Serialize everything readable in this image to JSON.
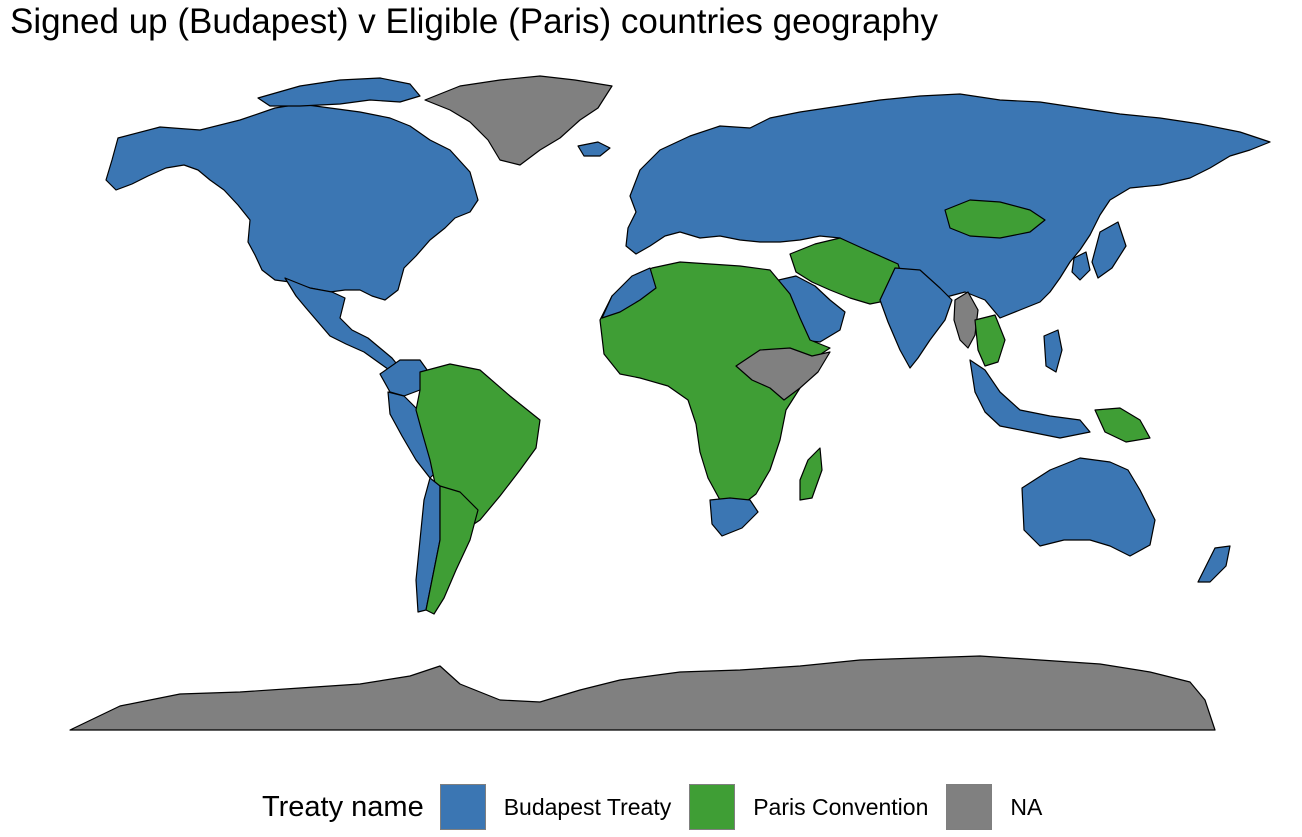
{
  "title": "Signed up (Budapest) v Eligible (Paris) countries geography",
  "colors": {
    "budapest": "#3b76b3",
    "paris": "#3f9e35",
    "na": "#808080",
    "border": "#000000",
    "background": "#ffffff"
  },
  "legend": {
    "title": "Treaty name",
    "items": [
      {
        "label": "Budapest Treaty",
        "color": "#3b76b3"
      },
      {
        "label": "Paris Convention",
        "color": "#3f9e35"
      },
      {
        "label": "NA",
        "color": "#808080"
      }
    ]
  },
  "regions": [
    {
      "name": "North America",
      "category": "Budapest Treaty"
    },
    {
      "name": "Central America",
      "category": "Budapest Treaty"
    },
    {
      "name": "Greenland",
      "category": "NA"
    },
    {
      "name": "Europe",
      "category": "Budapest Treaty"
    },
    {
      "name": "Russia",
      "category": "Budapest Treaty"
    },
    {
      "name": "China",
      "category": "Budapest Treaty"
    },
    {
      "name": "Mongolia",
      "category": "Paris Convention"
    },
    {
      "name": "Central Asia",
      "category": "Paris Convention"
    },
    {
      "name": "Saudi Arabia",
      "category": "Budapest Treaty"
    },
    {
      "name": "India",
      "category": "Budapest Treaty"
    },
    {
      "name": "Myanmar",
      "category": "NA"
    },
    {
      "name": "Southeast Asia",
      "category": "Paris Convention"
    },
    {
      "name": "Indonesia",
      "category": "Budapest Treaty"
    },
    {
      "name": "Papua New Guinea",
      "category": "Paris Convention"
    },
    {
      "name": "Australia",
      "category": "Budapest Treaty"
    },
    {
      "name": "New Zealand",
      "category": "Budapest Treaty"
    },
    {
      "name": "Africa",
      "category": "Paris Convention"
    },
    {
      "name": "Horn of Africa",
      "category": "NA"
    },
    {
      "name": "Morocco",
      "category": "Budapest Treaty"
    },
    {
      "name": "South Africa",
      "category": "Budapest Treaty"
    },
    {
      "name": "Madagascar",
      "category": "Paris Convention"
    },
    {
      "name": "Colombia",
      "category": "Budapest Treaty"
    },
    {
      "name": "Peru",
      "category": "Budapest Treaty"
    },
    {
      "name": "Chile",
      "category": "Budapest Treaty"
    },
    {
      "name": "Brazil",
      "category": "Paris Convention"
    },
    {
      "name": "Argentina",
      "category": "Paris Convention"
    },
    {
      "name": "Japan",
      "category": "Budapest Treaty"
    },
    {
      "name": "Korea",
      "category": "Budapest Treaty"
    },
    {
      "name": "Philippines",
      "category": "Budapest Treaty"
    },
    {
      "name": "Antarctica",
      "category": "NA"
    }
  ]
}
